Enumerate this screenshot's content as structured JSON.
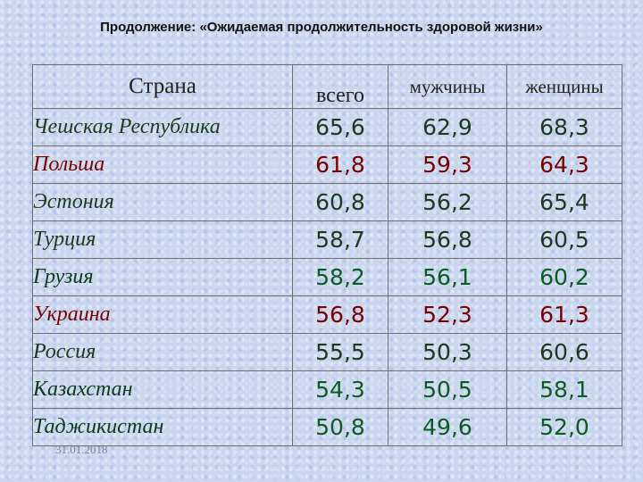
{
  "title": "Продолжение: «Ожидаемая продолжительность здоровой жизни»",
  "headers": {
    "country": "Страна",
    "total": "всего",
    "men": "мужчины",
    "women": "женщины"
  },
  "rows": [
    {
      "country": "Чешская Республика",
      "total": "65,6",
      "men": "62,9",
      "women": "68,3"
    },
    {
      "country": "Польша",
      "total": "61,8",
      "men": "59,3",
      "women": "64,3"
    },
    {
      "country": "Эстония",
      "total": "60,8",
      "men": "56,2",
      "women": "65,4"
    },
    {
      "country": "Турция",
      "total": "58,7",
      "men": "56,8",
      "women": "60,5"
    },
    {
      "country": "Грузия",
      "total": "58,2",
      "men": "56,1",
      "women": "60,2"
    },
    {
      "country": "Украина",
      "total": "56,8",
      "men": "52,3",
      "women": "61,3"
    },
    {
      "country": "Россия",
      "total": "55,5",
      "men": "50,3",
      "women": "60,6"
    },
    {
      "country": "Казахстан",
      "total": "54,3",
      "men": "50,5",
      "women": "58,1"
    },
    {
      "country": "Таджикистан",
      "total": "50,8",
      "men": "49,6",
      "women": "52,0"
    }
  ],
  "footer_date": "31.01.2018",
  "colors": {
    "dark": "#1b3a1e",
    "red": "#7a0000",
    "green": "#0b5c24",
    "background": "#c9d6ee"
  }
}
